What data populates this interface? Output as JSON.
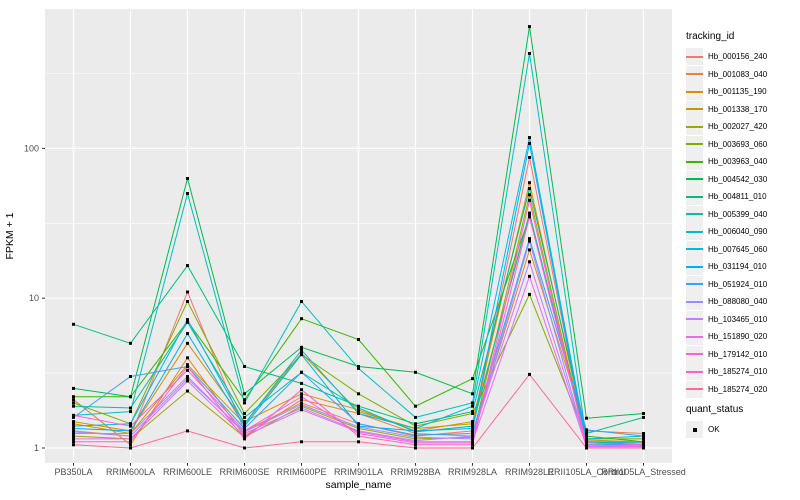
{
  "figure": {
    "background": "#FFFFFF",
    "panel_background": "#EBEBEB",
    "grid_color": "#FFFFFF",
    "tick_color": "#333333",
    "tick_label_color": "#4D4D4D"
  },
  "axes": {
    "x": {
      "title": "sample_name"
    },
    "y": {
      "title": "FPKM + 1"
    }
  },
  "legends": {
    "tracking": {
      "title": "tracking_id"
    },
    "quant": {
      "title": "quant_status",
      "items": [
        {
          "label": "OK"
        }
      ]
    }
  },
  "chart_data": {
    "type": "line",
    "title": "",
    "xlabel": "sample_name",
    "ylabel": "FPKM + 1",
    "y_scale": "log10",
    "ylim": [
      0.79,
      850
    ],
    "y_major_ticks": [
      1,
      10,
      100
    ],
    "y_tick_labels": [
      "1",
      "10",
      "100"
    ],
    "y_minor_ticks": [
      3.1623,
      31.623,
      316.23
    ],
    "grid": true,
    "legend_position": "right",
    "point_marker": {
      "shape": "square",
      "color": "#000000",
      "status_label": "OK"
    },
    "categories": [
      "PB350LA",
      "RRIM600LA",
      "RRIM600LE",
      "RRIM600SE",
      "RRIM600PE",
      "RRIM901LA",
      "RRIM928BA",
      "RRIM928LA",
      "RRIM928LE",
      "RRII105LA_Control",
      "RRII105LA_Stressed"
    ],
    "series": [
      {
        "name": "Hb_000156_240",
        "color": "#F8766D",
        "values": [
          1.3,
          1.2,
          11.0,
          1.3,
          2.0,
          1.45,
          1.2,
          1.3,
          87,
          1.1,
          1.05
        ]
      },
      {
        "name": "Hb_001083_040",
        "color": "#EA8331",
        "values": [
          2.1,
          1.05,
          4.0,
          1.2,
          2.1,
          1.7,
          1.25,
          1.2,
          21,
          1.3,
          1.25
        ]
      },
      {
        "name": "Hb_001135_190",
        "color": "#D89000",
        "values": [
          1.5,
          1.3,
          5.0,
          1.5,
          2.3,
          1.8,
          1.3,
          1.5,
          59,
          1.13,
          1.1
        ]
      },
      {
        "name": "Hb_001338_170",
        "color": "#C09B00",
        "values": [
          1.45,
          1.25,
          3.6,
          1.45,
          4.3,
          1.75,
          1.35,
          1.45,
          36,
          1.1,
          1.1
        ]
      },
      {
        "name": "Hb_002027_420",
        "color": "#A3A500",
        "values": [
          1.2,
          1.15,
          2.4,
          1.18,
          1.9,
          1.35,
          1.15,
          1.18,
          49,
          1.05,
          1.05
        ]
      },
      {
        "name": "Hb_003693_060",
        "color": "#7CAE00",
        "values": [
          2.0,
          1.45,
          9.5,
          1.7,
          4.2,
          2.3,
          1.4,
          1.7,
          10.6,
          1.15,
          1.15
        ]
      },
      {
        "name": "Hb_003963_040",
        "color": "#39B600",
        "values": [
          2.2,
          2.2,
          7.0,
          2.1,
          7.3,
          5.3,
          1.9,
          2.9,
          35,
          1.2,
          1.1
        ]
      },
      {
        "name": "Hb_004542_030",
        "color": "#00BB4E",
        "values": [
          2.5,
          2.2,
          63,
          2.3,
          4.7,
          3.5,
          3.2,
          2.3,
          650,
          1.58,
          1.7
        ]
      },
      {
        "name": "Hb_004811_010",
        "color": "#00BF7D",
        "values": [
          6.7,
          5.0,
          16.5,
          3.5,
          2.7,
          1.9,
          1.45,
          1.75,
          54,
          1.25,
          1.6
        ]
      },
      {
        "name": "Hb_005399_040",
        "color": "#00C1A3",
        "values": [
          1.9,
          1.85,
          6.9,
          1.6,
          3.2,
          1.85,
          1.28,
          1.4,
          37,
          1.1,
          1.05
        ]
      },
      {
        "name": "Hb_006040_090",
        "color": "#00BFC4",
        "values": [
          1.65,
          1.75,
          50,
          2.0,
          9.5,
          3.4,
          1.6,
          2.0,
          430,
          1.15,
          1.2
        ]
      },
      {
        "name": "Hb_007645_060",
        "color": "#00BAE0",
        "values": [
          1.4,
          1.45,
          7.2,
          1.45,
          4.5,
          1.7,
          1.35,
          1.9,
          118,
          1.1,
          1.08
        ]
      },
      {
        "name": "Hb_031194_010",
        "color": "#00B0F6",
        "values": [
          1.35,
          1.3,
          5.8,
          1.4,
          4.2,
          1.4,
          1.3,
          1.35,
          108,
          1.05,
          1.05
        ]
      },
      {
        "name": "Hb_051924_010",
        "color": "#35A2FF",
        "values": [
          1.6,
          3.0,
          3.5,
          1.35,
          3.2,
          1.45,
          1.22,
          1.25,
          25,
          1.32,
          1.2
        ]
      },
      {
        "name": "Hb_088080_040",
        "color": "#9590FF",
        "values": [
          1.28,
          1.2,
          2.9,
          1.28,
          1.95,
          1.38,
          1.18,
          1.15,
          24,
          1.03,
          1.03
        ]
      },
      {
        "name": "Hb_103465_010",
        "color": "#C77CFF",
        "values": [
          1.25,
          1.25,
          3.0,
          1.25,
          1.85,
          1.3,
          1.12,
          1.2,
          17.5,
          1.05,
          1.02
        ]
      },
      {
        "name": "Hb_151890_020",
        "color": "#E76BF3",
        "values": [
          1.15,
          1.15,
          2.8,
          1.2,
          1.8,
          1.28,
          1.1,
          1.1,
          14,
          1.02,
          1.02
        ]
      },
      {
        "name": "Hb_179142_010",
        "color": "#FA62DB",
        "values": [
          1.65,
          1.4,
          3.3,
          1.3,
          2.2,
          1.25,
          1.08,
          1.08,
          35,
          1.08,
          1.05
        ]
      },
      {
        "name": "Hb_185274_010",
        "color": "#FF61CC",
        "values": [
          1.1,
          1.1,
          3.5,
          1.15,
          2.45,
          1.2,
          1.05,
          1.05,
          45,
          1.0,
          1.0
        ]
      },
      {
        "name": "Hb_185274_020",
        "color": "#FF6A98",
        "values": [
          1.05,
          1.0,
          1.3,
          1.0,
          1.1,
          1.1,
          1.0,
          1.0,
          3.1,
          1.0,
          1.0
        ]
      }
    ]
  }
}
